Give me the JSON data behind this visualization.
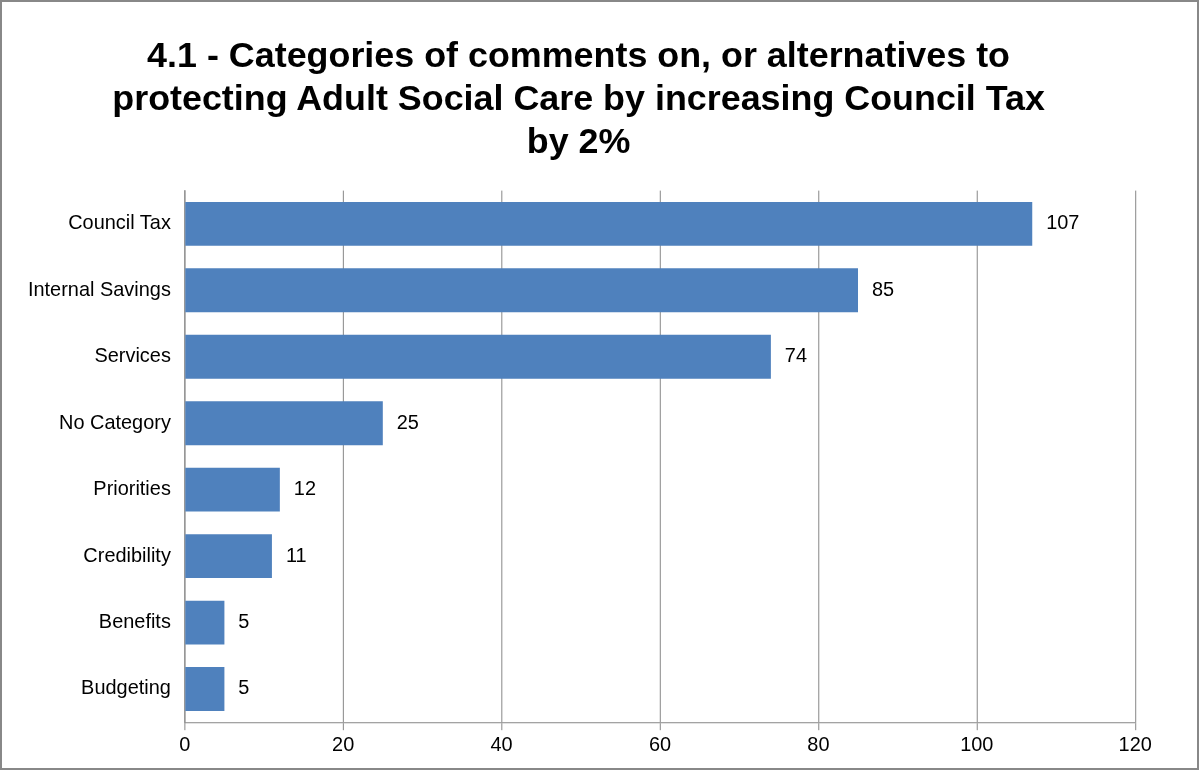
{
  "chart_data": {
    "type": "bar",
    "orientation": "horizontal",
    "title": "4.1 - Categories of comments on, or alternatives to protecting Adult Social Care by increasing Council Tax by 2%",
    "categories": [
      "Council Tax",
      "Internal Savings",
      "Services",
      "No Category",
      "Priorities",
      "Credibility",
      "Benefits",
      "Budgeting"
    ],
    "values": [
      107,
      85,
      74,
      25,
      12,
      11,
      5,
      5
    ],
    "color": "#4f81bd",
    "xlim": [
      0,
      120
    ],
    "xticks": [
      0,
      20,
      40,
      60,
      80,
      100,
      120
    ],
    "grid": "x",
    "data_labels": true,
    "legend": false
  }
}
